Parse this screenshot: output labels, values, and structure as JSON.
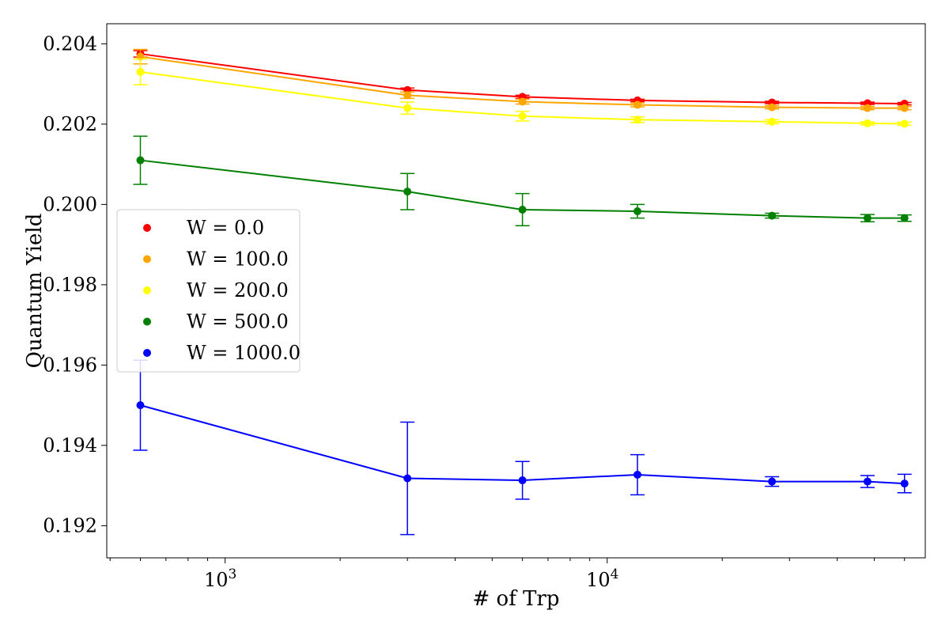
{
  "chart_data": {
    "type": "line",
    "title": "",
    "xlabel": "# of Trp",
    "ylabel": "Quantum Yield",
    "xscale": "log",
    "xlim": [
      490,
      68000
    ],
    "ylim": [
      0.1912,
      0.2045
    ],
    "x_ticks": [
      {
        "value": 1000,
        "label": "10",
        "exp": "3"
      },
      {
        "value": 10000,
        "label": "10",
        "exp": "4"
      }
    ],
    "y_ticks": [
      0.192,
      0.194,
      0.196,
      0.198,
      0.2,
      0.202,
      0.204
    ],
    "y_tick_labels": [
      "0.192",
      "0.194",
      "0.196",
      "0.198",
      "0.200",
      "0.202",
      "0.204"
    ],
    "grid": false,
    "legend_position": "center-left",
    "x": [
      600,
      3000,
      6000,
      12000,
      27000,
      48000,
      60000
    ],
    "series": [
      {
        "name": "W = 0.0",
        "color": "#ff0000",
        "values": [
          0.20375,
          0.20285,
          0.20268,
          0.20259,
          0.20254,
          0.20252,
          0.20251
        ],
        "errors": [
          8e-05,
          5e-05,
          4e-05,
          3e-05,
          3e-05,
          3e-05,
          3e-05
        ]
      },
      {
        "name": "W = 100.0",
        "color": "#ffa500",
        "values": [
          0.20368,
          0.20272,
          0.20256,
          0.20248,
          0.20242,
          0.2024,
          0.2024
        ],
        "errors": [
          0.00018,
          8e-05,
          6e-05,
          5e-05,
          4e-05,
          4e-05,
          4e-05
        ]
      },
      {
        "name": "W = 200.0",
        "color": "#ffff00",
        "values": [
          0.2033,
          0.2024,
          0.2022,
          0.20211,
          0.20206,
          0.20202,
          0.20201
        ],
        "errors": [
          0.00032,
          0.00015,
          0.00012,
          7e-05,
          5e-05,
          4e-05,
          4e-05
        ]
      },
      {
        "name": "W = 500.0",
        "color": "#008000",
        "values": [
          0.2011,
          0.20032,
          0.19987,
          0.19983,
          0.19972,
          0.19966,
          0.19966
        ],
        "errors": [
          0.0006,
          0.00045,
          0.0004,
          0.00017,
          6e-05,
          9e-05,
          8e-05
        ]
      },
      {
        "name": "W = 1000.0",
        "color": "#0000ff",
        "values": [
          0.195,
          0.19318,
          0.19313,
          0.19327,
          0.1931,
          0.1931,
          0.19305
        ],
        "errors": [
          0.00112,
          0.0014,
          0.00047,
          0.0005,
          0.00012,
          0.00015,
          0.00023
        ]
      }
    ]
  }
}
